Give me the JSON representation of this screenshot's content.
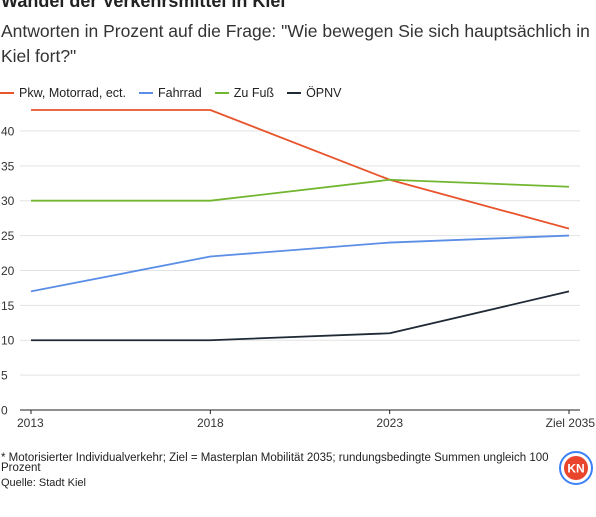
{
  "header": {
    "title": "Wandel der Verkehrsmittel in Kiel",
    "subtitle": "Antworten in Prozent auf die Frage: \"Wie bewegen Sie sich hauptsächlich in Kiel fort?\""
  },
  "footer": {
    "footnote": "* Motorisierter Individualverkehr; Ziel = Masterplan Mobilität 2035; rundungsbedingte Summen ungleich 100 Prozent",
    "source": "Quelle: Stadt Kiel",
    "logo_text": "KN"
  },
  "colors": {
    "logo_ring": "#3b82f6",
    "logo_fill": "#e8452c",
    "grid": "#e3e3e3",
    "axis": "#222222"
  },
  "chart_data": {
    "type": "line",
    "categories": [
      "2013",
      "2018",
      "2023",
      "Ziel 2035"
    ],
    "ylim": [
      0,
      43
    ],
    "yticks": [
      0,
      5,
      10,
      15,
      20,
      25,
      30,
      35,
      40
    ],
    "grid": true,
    "legend_position": "top-left",
    "xlabel": "",
    "ylabel": "",
    "series": [
      {
        "name": "Pkw, Motorrad, ect.",
        "color": "#e8552c",
        "values": [
          43,
          43,
          33,
          26
        ]
      },
      {
        "name": "Fahrrad",
        "color": "#5b8ee6",
        "values": [
          17,
          22,
          24,
          25
        ]
      },
      {
        "name": "Zu Fuß",
        "color": "#72b62f",
        "values": [
          30,
          30,
          33,
          32
        ]
      },
      {
        "name": "ÖPNV",
        "color": "#1f2a36",
        "values": [
          10,
          10,
          11,
          17
        ]
      }
    ]
  }
}
